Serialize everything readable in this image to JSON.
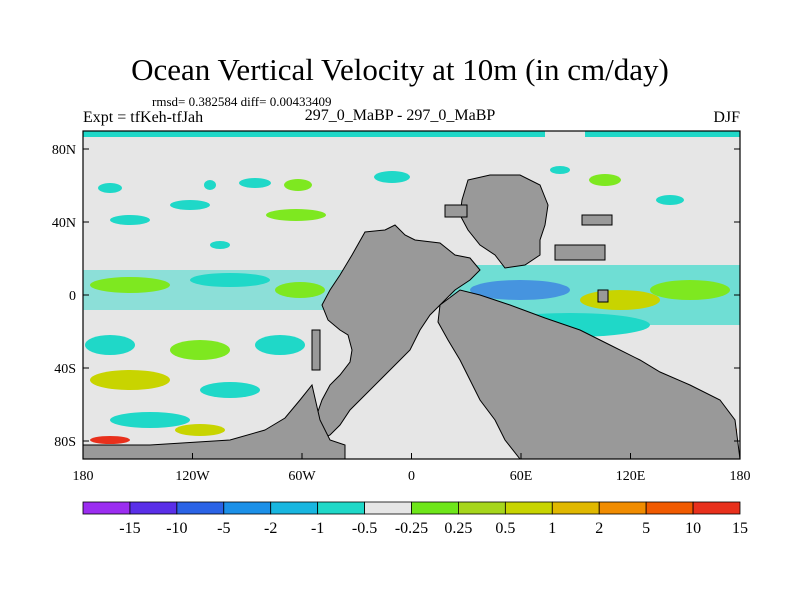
{
  "header": {
    "title": "Ocean Vertical Velocity at 10m (in cm/day)",
    "stats": "rmsd= 0.382584 diff= 0.00433409",
    "experiment": "Expt = tfKeh-tfJah",
    "experiments": "297_0_MaBP - 297_0_MaBP",
    "season": "DJF"
  },
  "map": {
    "x_ticks": [
      "180",
      "120W",
      "60W",
      "0",
      "60E",
      "120E",
      "180"
    ],
    "y_ticks": [
      "80N",
      "40N",
      "0",
      "40S",
      "80S"
    ],
    "colors": {
      "land": "#999999",
      "neutral": "#e6e6e6",
      "teal": "#1fd8c8",
      "lime": "#7ee820",
      "yellow": "#c8d400"
    }
  },
  "colorbar": {
    "colors": [
      "#9b2df0",
      "#5a2fe8",
      "#2b63e6",
      "#1b90e8",
      "#18b6e0",
      "#1fd8c8",
      "#e6e6e6",
      "#6ee61a",
      "#a6d61c",
      "#c8d400",
      "#e0b800",
      "#f08c00",
      "#f05a00",
      "#e8301c"
    ],
    "labels": [
      "-15",
      "-10",
      "-5",
      "-2",
      "-1",
      "-0.5",
      "-0.25",
      "0.25",
      "0.5",
      "1",
      "2",
      "5",
      "10",
      "15"
    ]
  }
}
